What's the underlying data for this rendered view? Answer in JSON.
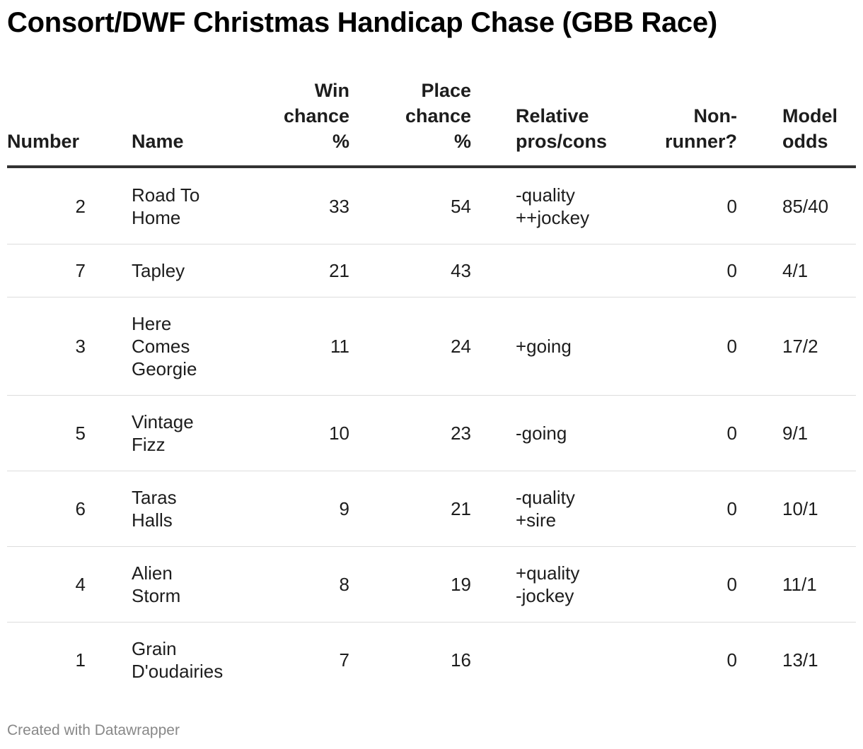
{
  "title": "Consort/DWF Christmas Handicap Chase (GBB Race)",
  "headers": {
    "number": "Number",
    "name": "Name",
    "win": "Win\nchance\n%",
    "place": "Place\nchance\n%",
    "pros": "Relative\npros/cons",
    "nonrunner": "Non-\nrunner?",
    "odds": "Model\nodds"
  },
  "chart_data": {
    "type": "table",
    "title": "Consort/DWF Christmas Handicap Chase (GBB Race)",
    "columns": [
      "Number",
      "Name",
      "Win chance %",
      "Place chance %",
      "Relative pros/cons",
      "Non-runner?",
      "Model odds"
    ],
    "rows": [
      {
        "number": "2",
        "name": "Road To\nHome",
        "win": "33",
        "place": "54",
        "pros": "-quality\n++jockey",
        "nonrunner": "0",
        "odds": "85/40"
      },
      {
        "number": "7",
        "name": "Tapley",
        "win": "21",
        "place": "43",
        "pros": "",
        "nonrunner": "0",
        "odds": "4/1"
      },
      {
        "number": "3",
        "name": "Here\nComes\nGeorgie",
        "win": "11",
        "place": "24",
        "pros": "+going",
        "nonrunner": "0",
        "odds": "17/2"
      },
      {
        "number": "5",
        "name": "Vintage\nFizz",
        "win": "10",
        "place": "23",
        "pros": "-going",
        "nonrunner": "0",
        "odds": "9/1"
      },
      {
        "number": "6",
        "name": "Taras\nHalls",
        "win": "9",
        "place": "21",
        "pros": "-quality\n+sire",
        "nonrunner": "0",
        "odds": "10/1"
      },
      {
        "number": "4",
        "name": "Alien\nStorm",
        "win": "8",
        "place": "19",
        "pros": "+quality\n-jockey",
        "nonrunner": "0",
        "odds": "11/1"
      },
      {
        "number": "1",
        "name": "Grain\nD'oudairies",
        "win": "7",
        "place": "16",
        "pros": "",
        "nonrunner": "0",
        "odds": "13/1"
      }
    ]
  },
  "footer": "Created with Datawrapper"
}
